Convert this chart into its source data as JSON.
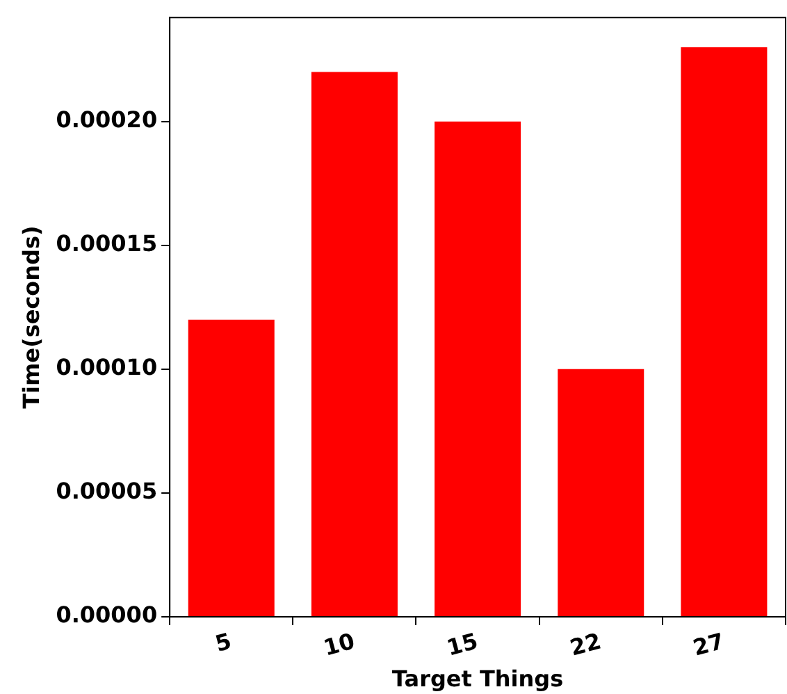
{
  "chart_data": {
    "type": "bar",
    "xlabel": "Target Things",
    "ylabel": "Time(seconds)",
    "categories": [
      "5",
      "10",
      "15",
      "22",
      "27"
    ],
    "values": [
      0.00012,
      0.00022,
      0.0002,
      0.0001,
      0.00023
    ],
    "color": "#ff0000",
    "ylim": [
      0,
      0.000242
    ],
    "yticks": [
      {
        "value": 0,
        "label": "0.00000"
      },
      {
        "value": 5e-05,
        "label": "0.00005"
      },
      {
        "value": 0.0001,
        "label": "0.00010"
      },
      {
        "value": 0.00015,
        "label": "0.00015"
      },
      {
        "value": 0.0002,
        "label": "0.00020"
      }
    ],
    "grid": false,
    "legend": false
  }
}
